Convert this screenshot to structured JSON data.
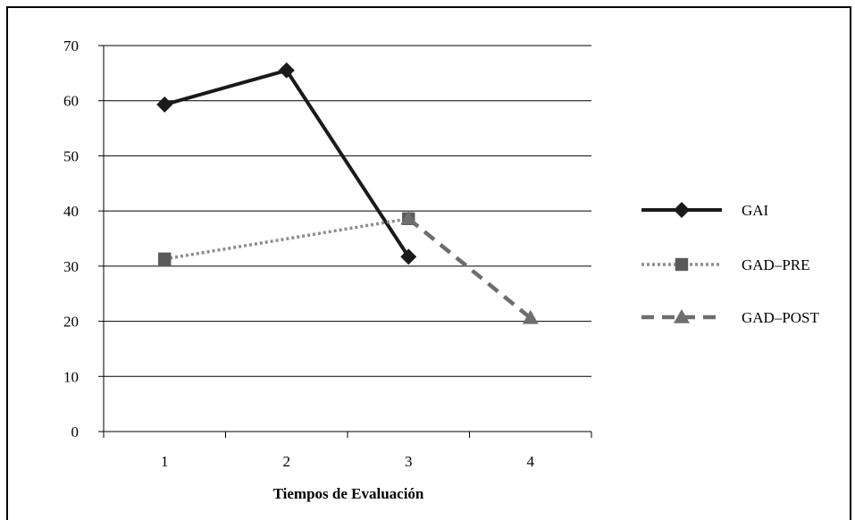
{
  "chart_data": {
    "type": "line",
    "categories": [
      "1",
      "2",
      "3",
      "4"
    ],
    "xlabel": "Tiempos de Evaluación",
    "ylabel": "",
    "ylim": [
      0,
      70
    ],
    "yticks": [
      0,
      10,
      20,
      30,
      40,
      50,
      60,
      70
    ],
    "grid": true,
    "legend_position": "right",
    "series": [
      {
        "name": "GAI",
        "values": [
          59.3,
          65.5,
          31.7,
          null
        ],
        "color": "#1a1a1a",
        "line_style": "solid",
        "marker": "diamond"
      },
      {
        "name": "GAD–PRE",
        "values": [
          31.3,
          null,
          38.6,
          null
        ],
        "color": "#8c8c8c",
        "line_style": "dotted",
        "marker": "square",
        "marker_color": "#5a5a5a"
      },
      {
        "name": "GAD–POST",
        "values": [
          null,
          null,
          38.6,
          20.6
        ],
        "color": "#6e6e6e",
        "line_style": "dashed",
        "marker": "triangle"
      }
    ]
  }
}
